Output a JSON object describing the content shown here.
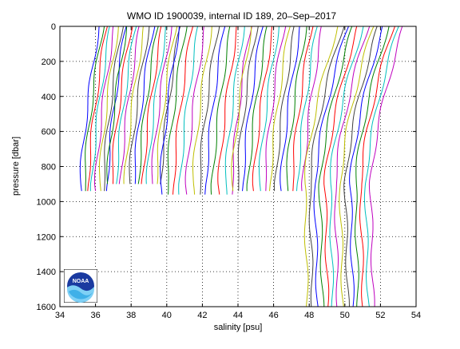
{
  "figure": {
    "logo_text": "NOAA"
  },
  "chart_data": {
    "type": "line",
    "title": "WMO ID 1900039, internal ID 189, 20–Sep–2017",
    "xlabel": "salinity [psu]",
    "ylabel": "pressure [dbar]",
    "xlim": [
      34,
      54
    ],
    "ylim": [
      0,
      1600
    ],
    "y_reversed": true,
    "grid": true,
    "grid_style": "dotted",
    "x_ticks": [
      34,
      36,
      38,
      40,
      42,
      44,
      46,
      48,
      50,
      52,
      54
    ],
    "y_ticks": [
      0,
      200,
      400,
      600,
      800,
      1000,
      1200,
      1400,
      1600
    ],
    "series_colors": [
      "#0000ff",
      "#008000",
      "#ff0000",
      "#00bfbf",
      "#bf00bf",
      "#bfbf00",
      "#404040"
    ],
    "profile_groups": [
      {
        "x_start": 35.5,
        "x_end": 37.0,
        "count": 8,
        "bottom_pressure": 950,
        "surface_offset": 0.7
      },
      {
        "x_start": 37.0,
        "x_end": 40.0,
        "count": 13,
        "bottom_pressure": 910,
        "surface_offset": 0.75
      },
      {
        "x_start": 40.0,
        "x_end": 44.0,
        "count": 12,
        "bottom_pressure": 960,
        "surface_offset": 0.7
      },
      {
        "x_start": 44.0,
        "x_end": 48.0,
        "count": 14,
        "bottom_pressure": 950,
        "surface_offset": 0.75
      },
      {
        "x_start": 48.1,
        "x_end": 51.8,
        "count": 14,
        "bottom_pressure": 1600,
        "surface_offset": 1.5
      }
    ]
  }
}
